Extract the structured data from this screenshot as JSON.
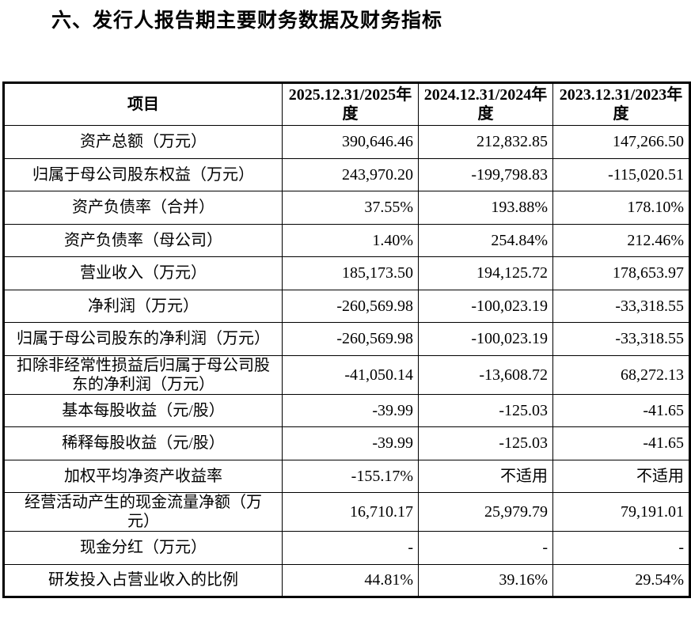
{
  "header": {
    "title": "六、发行人报告期主要财务数据及财务指标"
  },
  "table": {
    "columns": [
      "项目",
      "2025.12.31/2025年度",
      "2024.12.31/2024年度",
      "2023.12.31/2023年度"
    ],
    "rows": [
      [
        "资产总额（万元）",
        "390,646.46",
        "212,832.85",
        "147,266.50"
      ],
      [
        "归属于母公司股东权益（万元）",
        "243,970.20",
        "-199,798.83",
        "-115,020.51"
      ],
      [
        "资产负债率（合并）",
        "37.55%",
        "193.88%",
        "178.10%"
      ],
      [
        "资产负债率（母公司）",
        "1.40%",
        "254.84%",
        "212.46%"
      ],
      [
        "营业收入（万元）",
        "185,173.50",
        "194,125.72",
        "178,653.97"
      ],
      [
        "净利润（万元）",
        "-260,569.98",
        "-100,023.19",
        "-33,318.55"
      ],
      [
        "归属于母公司股东的净利润（万元）",
        "-260,569.98",
        "-100,023.19",
        "-33,318.55"
      ],
      [
        "扣除非经常性损益后归属于母公司股东的净利润（万元）",
        "-41,050.14",
        "-13,608.72",
        "68,272.13"
      ],
      [
        "基本每股收益（元/股）",
        "-39.99",
        "-125.03",
        "-41.65"
      ],
      [
        "稀释每股收益（元/股）",
        "-39.99",
        "-125.03",
        "-41.65"
      ],
      [
        "加权平均净资产收益率",
        "-155.17%",
        "不适用",
        "不适用"
      ],
      [
        "经营活动产生的现金流量净额（万元）",
        "16,710.17",
        "25,979.79",
        "79,191.01"
      ],
      [
        "现金分红（万元）",
        "-",
        "-",
        "-"
      ],
      [
        "研发投入占营业收入的比例",
        "44.81%",
        "39.16%",
        "29.54%"
      ]
    ]
  }
}
